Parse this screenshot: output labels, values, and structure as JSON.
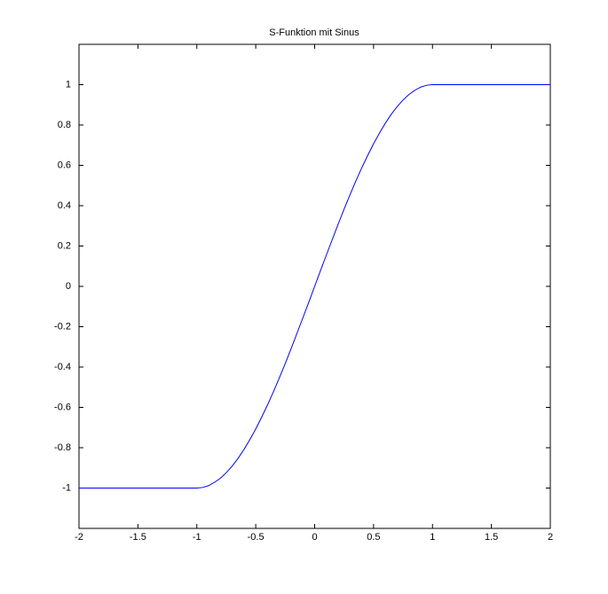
{
  "chart_data": {
    "type": "line",
    "title": "S-Funktion mit Sinus",
    "x": [
      -2,
      -1,
      -0.95,
      -0.9,
      -0.85,
      -0.8,
      -0.75,
      -0.7,
      -0.65,
      -0.6,
      -0.55,
      -0.5,
      -0.45,
      -0.4,
      -0.35,
      -0.3,
      -0.25,
      -0.2,
      -0.15,
      -0.1,
      -0.05,
      0,
      0.05,
      0.1,
      0.15,
      0.2,
      0.25,
      0.3,
      0.35,
      0.4,
      0.45,
      0.5,
      0.55,
      0.6,
      0.65,
      0.7,
      0.75,
      0.8,
      0.85,
      0.9,
      0.95,
      1,
      2
    ],
    "series": [
      {
        "color": "#0000ff",
        "values": [
          -1,
          -1,
          -0.997,
          -0.988,
          -0.972,
          -0.951,
          -0.924,
          -0.891,
          -0.853,
          -0.809,
          -0.76,
          -0.707,
          -0.649,
          -0.588,
          -0.523,
          -0.454,
          -0.383,
          -0.309,
          -0.233,
          -0.156,
          -0.079,
          0,
          0.079,
          0.156,
          0.233,
          0.309,
          0.383,
          0.454,
          0.523,
          0.588,
          0.649,
          0.707,
          0.76,
          0.809,
          0.853,
          0.891,
          0.924,
          0.951,
          0.972,
          0.988,
          0.997,
          1,
          1
        ]
      }
    ],
    "xlim": [
      -2,
      2
    ],
    "xticks": [
      -2,
      -1.5,
      -1,
      -0.5,
      0,
      0.5,
      1,
      1.5,
      2
    ],
    "ylim": [
      -1.2,
      1.2
    ],
    "yticks": [
      -1,
      -0.8,
      -0.6,
      -0.4,
      -0.2,
      0,
      0.2,
      0.4,
      0.6,
      0.8,
      1
    ]
  }
}
